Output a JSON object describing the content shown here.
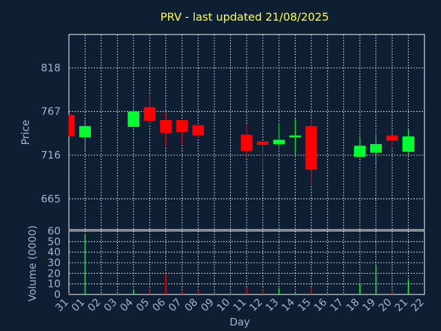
{
  "chart_data": [
    {
      "type": "candlestick",
      "title": "PRV - last updated 21/08/2025",
      "ylabel": "Price",
      "ylim": [
        629,
        857
      ],
      "yticks": [
        665,
        716,
        767,
        818
      ],
      "grid": true,
      "x_tick_labels": [
        "31",
        "01",
        "02",
        "03",
        "04",
        "05",
        "06",
        "07",
        "08",
        "09",
        "10",
        "11",
        "12",
        "13",
        "14",
        "15",
        "16",
        "17",
        "18",
        "19",
        "20",
        "21",
        "22"
      ],
      "candles": [
        {
          "x": "31",
          "open": 763,
          "high": 763,
          "low": 738,
          "close": 738
        },
        {
          "x": "01",
          "open": 737,
          "high": 758,
          "low": 721,
          "close": 750
        },
        {
          "x": "04",
          "open": 749,
          "high": 768,
          "low": 749,
          "close": 767
        },
        {
          "x": "05",
          "open": 772,
          "high": 787,
          "low": 752,
          "close": 756
        },
        {
          "x": "06",
          "open": 757,
          "high": 766,
          "low": 727,
          "close": 742
        },
        {
          "x": "07",
          "open": 757,
          "high": 757,
          "low": 729,
          "close": 743
        },
        {
          "x": "08",
          "open": 751,
          "high": 751,
          "low": 736,
          "close": 739
        },
        {
          "x": "11",
          "open": 740,
          "high": 751,
          "low": 714,
          "close": 721
        },
        {
          "x": "12",
          "open": 732,
          "high": 732,
          "low": 701,
          "close": 728
        },
        {
          "x": "13",
          "open": 729,
          "high": 754,
          "low": 726,
          "close": 734
        },
        {
          "x": "14",
          "open": 737,
          "high": 759,
          "low": 718,
          "close": 739
        },
        {
          "x": "15",
          "open": 750,
          "high": 758,
          "low": 680,
          "close": 699
        },
        {
          "x": "18",
          "open": 714,
          "high": 737,
          "low": 713,
          "close": 727
        },
        {
          "x": "19",
          "open": 719,
          "high": 739,
          "low": 704,
          "close": 729
        },
        {
          "x": "20",
          "open": 739,
          "high": 739,
          "low": 726,
          "close": 733
        },
        {
          "x": "21",
          "open": 720,
          "high": 746,
          "low": 719,
          "close": 738
        }
      ]
    },
    {
      "type": "bar",
      "ylabel": "Volume (0000)",
      "xlabel": "Day",
      "ylim": [
        0,
        60
      ],
      "yticks": [
        0,
        10,
        20,
        30,
        40,
        50,
        60
      ],
      "grid": true,
      "bars": [
        {
          "x": "31",
          "value": 0.5,
          "dir": "down"
        },
        {
          "x": "01",
          "value": 57,
          "dir": "up"
        },
        {
          "x": "04",
          "value": 4,
          "dir": "up"
        },
        {
          "x": "05",
          "value": 5,
          "dir": "down"
        },
        {
          "x": "06",
          "value": 19,
          "dir": "down"
        },
        {
          "x": "07",
          "value": 3,
          "dir": "down"
        },
        {
          "x": "08",
          "value": 5,
          "dir": "down"
        },
        {
          "x": "11",
          "value": 6,
          "dir": "down"
        },
        {
          "x": "12",
          "value": 5,
          "dir": "down"
        },
        {
          "x": "13",
          "value": 6,
          "dir": "up"
        },
        {
          "x": "14",
          "value": 1,
          "dir": "up"
        },
        {
          "x": "15",
          "value": 6,
          "dir": "down"
        },
        {
          "x": "18",
          "value": 10,
          "dir": "up"
        },
        {
          "x": "19",
          "value": 27,
          "dir": "up"
        },
        {
          "x": "20",
          "value": 2,
          "dir": "down"
        },
        {
          "x": "21",
          "value": 14,
          "dir": "up"
        }
      ]
    }
  ],
  "colors": {
    "background": "#0f1f33",
    "up": "#00ff33",
    "down": "#ff0000",
    "grid": "#ffffff",
    "text": "#9fb4d0",
    "title": "#ffff44"
  }
}
